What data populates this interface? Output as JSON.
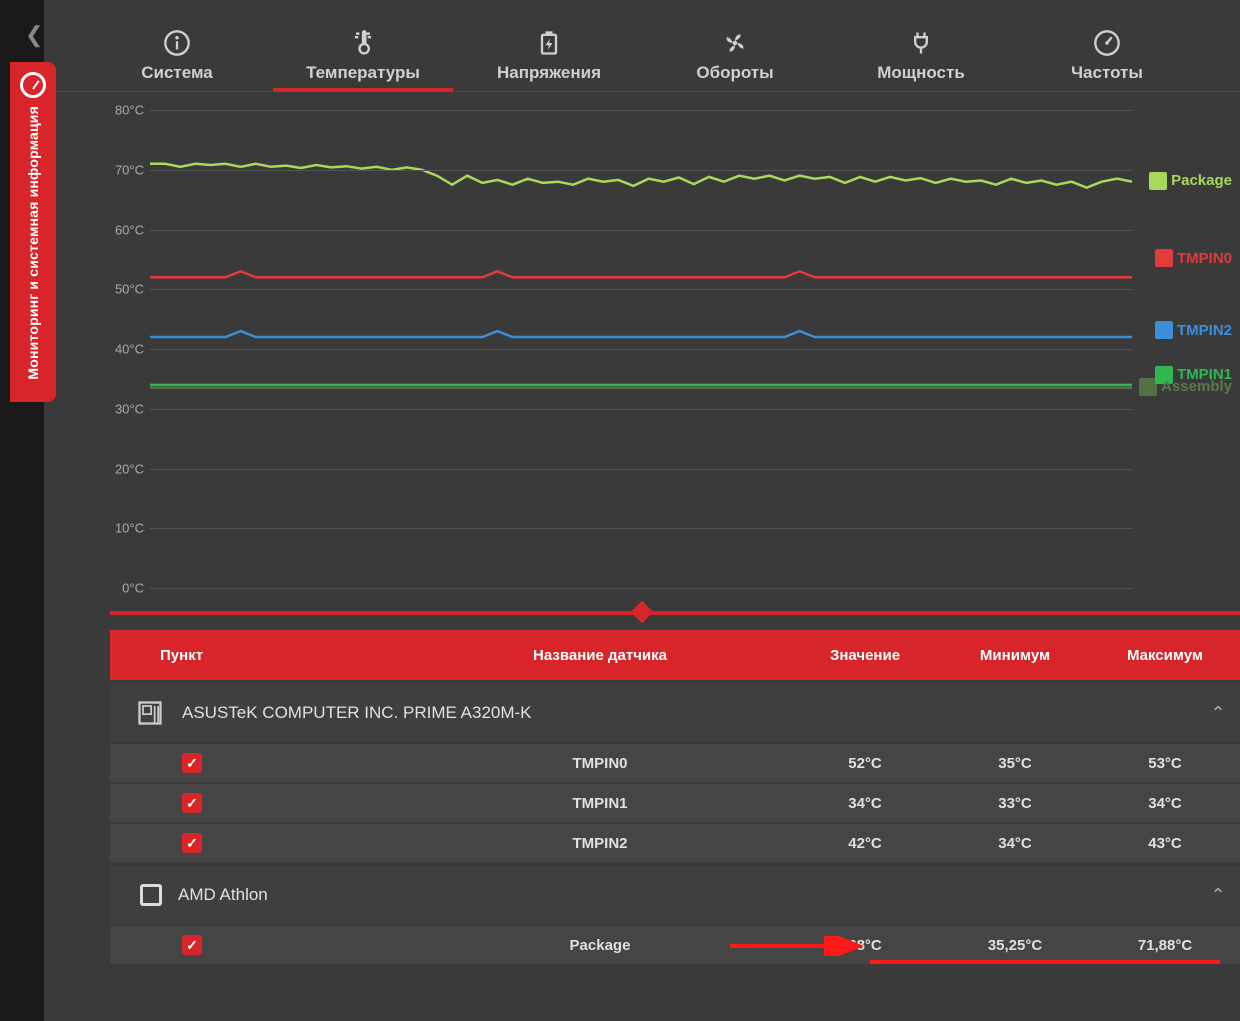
{
  "side_tab": {
    "label": "Мониторинг и системная информация"
  },
  "nav": {
    "items": [
      {
        "label": "Система",
        "icon": "info"
      },
      {
        "label": "Температуры",
        "icon": "thermo",
        "active": true
      },
      {
        "label": "Напряжения",
        "icon": "battery"
      },
      {
        "label": "Обороты",
        "icon": "fan"
      },
      {
        "label": "Мощность",
        "icon": "plug"
      },
      {
        "label": "Частоты",
        "icon": "gauge"
      }
    ]
  },
  "chart": {
    "ymin": 0,
    "ymax": 80,
    "ystep": 10,
    "unit": "°C",
    "grid_color": "#555555",
    "series": [
      {
        "name": "Package",
        "color": "#a9d85a",
        "legend_y": 68,
        "points": [
          71,
          71,
          70.5,
          71,
          70.8,
          71,
          70.5,
          71,
          70.5,
          70.7,
          70.3,
          70.8,
          70.4,
          70.6,
          70.2,
          70.5,
          70,
          70.4,
          70,
          69,
          67.5,
          69,
          67.8,
          68.3,
          67.5,
          68.5,
          67.8,
          68,
          67.5,
          68.5,
          68,
          68.3,
          67.3,
          68.5,
          68,
          68.7,
          67.6,
          68.8,
          68,
          69,
          68.5,
          69,
          68.2,
          69,
          68.5,
          68.8,
          67.8,
          68.8,
          68,
          68.8,
          68.2,
          68.6,
          67.8,
          68.5,
          68,
          68.2,
          67.5,
          68.5,
          67.8,
          68.2,
          67.5,
          68,
          67,
          68,
          68.5,
          68
        ]
      },
      {
        "name": "TMPIN0",
        "color": "#e23b3b",
        "legend_y": 55,
        "points": [
          52,
          52,
          52,
          52,
          52,
          52,
          53,
          52,
          52,
          52,
          52,
          52,
          52,
          52,
          52,
          52,
          52,
          52,
          52,
          52,
          52,
          52,
          52,
          53,
          52,
          52,
          52,
          52,
          52,
          52,
          52,
          52,
          52,
          52,
          52,
          52,
          52,
          52,
          52,
          52,
          52,
          52,
          52,
          53,
          52,
          52,
          52,
          52,
          52,
          52,
          52,
          52,
          52,
          52,
          52,
          52,
          52,
          52,
          52,
          52,
          52,
          52,
          52,
          52,
          52,
          52
        ]
      },
      {
        "name": "TMPIN2",
        "color": "#3b8fd8",
        "legend_y": 43,
        "points": [
          42,
          42,
          42,
          42,
          42,
          42,
          43,
          42,
          42,
          42,
          42,
          42,
          42,
          42,
          42,
          42,
          42,
          42,
          42,
          42,
          42,
          42,
          42,
          43,
          42,
          42,
          42,
          42,
          42,
          42,
          42,
          42,
          42,
          42,
          42,
          42,
          42,
          42,
          42,
          42,
          42,
          42,
          42,
          43,
          42,
          42,
          42,
          42,
          42,
          42,
          42,
          42,
          42,
          42,
          42,
          42,
          42,
          42,
          42,
          42,
          42,
          42,
          42,
          42,
          42,
          42
        ]
      },
      {
        "name": "TMPIN1",
        "color": "#2eb84f",
        "legend_y": 35.5,
        "points": [
          34,
          34,
          34,
          34,
          34,
          34,
          34,
          34,
          34,
          34,
          34,
          34,
          34,
          34,
          34,
          34,
          34,
          34,
          34,
          34,
          34,
          34,
          34,
          34,
          34,
          34,
          34,
          34,
          34,
          34,
          34,
          34,
          34,
          34,
          34,
          34,
          34,
          34,
          34,
          34,
          34,
          34,
          34,
          34,
          34,
          34,
          34,
          34,
          34,
          34,
          34,
          34,
          34,
          34,
          34,
          34,
          34,
          34,
          34,
          34,
          34,
          34,
          34,
          34,
          34,
          34
        ]
      },
      {
        "name": "Assembly",
        "color": "#6aa84f",
        "legend_y": 33.5,
        "faded": true,
        "points": [
          33.5,
          33.5,
          33.5,
          33.5,
          33.5,
          33.5,
          33.5,
          33.5,
          33.5,
          33.5,
          33.5,
          33.5,
          33.5,
          33.5,
          33.5,
          33.5,
          33.5,
          33.5,
          33.5,
          33.5,
          33.5,
          33.5,
          33.5,
          33.5,
          33.5,
          33.5,
          33.5,
          33.5,
          33.5,
          33.5,
          33.5,
          33.5,
          33.5,
          33.5,
          33.5,
          33.5,
          33.5,
          33.5,
          33.5,
          33.5,
          33.5,
          33.5,
          33.5,
          33.5,
          33.5,
          33.5,
          33.5,
          33.5,
          33.5,
          33.5,
          33.5,
          33.5,
          33.5,
          33.5,
          33.5,
          33.5,
          33.5,
          33.5,
          33.5,
          33.5,
          33.5,
          33.5,
          33.5,
          33.5,
          33.5,
          33.5
        ]
      }
    ]
  },
  "table": {
    "headers": {
      "item": "Пункт",
      "sensor": "Название датчика",
      "value": "Значение",
      "min": "Минимум",
      "max": "Максимум"
    },
    "groups": [
      {
        "title": "ASUSTeK COMPUTER INC. PRIME A320M-K",
        "icon": "mobo",
        "checked": null,
        "rows": [
          {
            "checked": true,
            "sensor": "TMPIN0",
            "value": "52°C",
            "min": "35°C",
            "max": "53°C"
          },
          {
            "checked": true,
            "sensor": "TMPIN1",
            "value": "34°C",
            "min": "33°C",
            "max": "34°C"
          },
          {
            "checked": true,
            "sensor": "TMPIN2",
            "value": "42°C",
            "min": "34°C",
            "max": "43°C"
          }
        ]
      },
      {
        "title": "AMD Athlon",
        "icon": "cpu",
        "checked": false,
        "rows": [
          {
            "checked": true,
            "sensor": "Package",
            "value": "68°C",
            "min": "35,25°C",
            "max": "71,88°C",
            "highlight": true
          }
        ]
      }
    ]
  },
  "colors": {
    "accent": "#d7252a",
    "bg_main": "#3a3a3a",
    "bg_row": "#454545"
  }
}
